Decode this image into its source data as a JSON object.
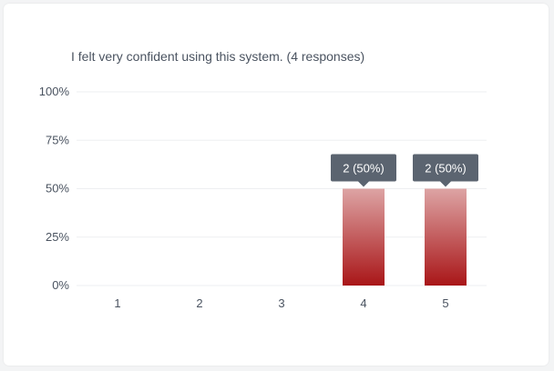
{
  "question": "I felt very confident using this system. (4 responses)",
  "colors": {
    "bar_top": "#dda4a4",
    "bar_bottom": "#a91618",
    "tooltip_bg": "#5b6470",
    "grid": "#eeeff1",
    "axis_text": "#4a5360"
  },
  "chart_data": {
    "type": "bar",
    "title": "I felt very confident using this system. (4 responses)",
    "categories": [
      "1",
      "2",
      "3",
      "4",
      "5"
    ],
    "values": [
      0,
      0,
      0,
      2,
      2
    ],
    "percent_values": [
      0,
      0,
      0,
      50,
      50
    ],
    "data_labels": [
      "",
      "",
      "",
      "2 (50%)",
      "2 (50%)"
    ],
    "ylim": [
      0,
      100
    ],
    "yticks": [
      "100%",
      "75%",
      "50%",
      "25%",
      "0%"
    ],
    "grid": true,
    "legend": "none"
  }
}
